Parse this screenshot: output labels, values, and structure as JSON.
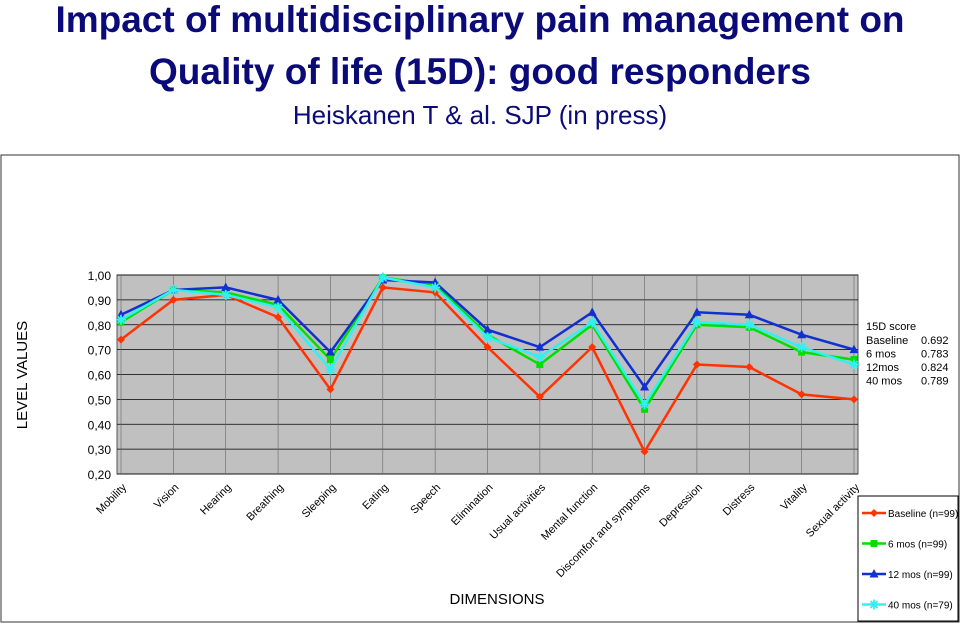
{
  "header": {
    "title_line1": "Impact of multidisciplinary pain management on",
    "title_line2": "Quality of life (15D): good responders",
    "subtitle": "Heiskanen T & al. SJP (in press)"
  },
  "chart_data": {
    "type": "line",
    "xlabel": "DIMENSIONS",
    "ylabel": "LEVEL VALUES",
    "ylim": [
      0.2,
      1.0
    ],
    "yticks": [
      "0,20",
      "0,30",
      "0,40",
      "0,50",
      "0,60",
      "0,70",
      "0,80",
      "0,90",
      "1,00"
    ],
    "categories": [
      "Mobility",
      "Vision",
      "Hearing",
      "Breathing",
      "Sleeping",
      "Eating",
      "Speech",
      "Elimination",
      "Usual activities",
      "Mental function",
      "Discomfort and symptoms",
      "Depression",
      "Distress",
      "Vitality",
      "Sexual activity"
    ],
    "series": [
      {
        "name": "Baseline (n=99)",
        "color": "#ff3300",
        "marker": "diamond",
        "values": [
          0.74,
          0.9,
          0.92,
          0.83,
          0.54,
          0.95,
          0.93,
          0.71,
          0.51,
          0.71,
          0.29,
          0.64,
          0.63,
          0.52,
          0.5
        ]
      },
      {
        "name": "6 mos (n=99)",
        "color": "#00e000",
        "marker": "square",
        "values": [
          0.81,
          0.94,
          0.93,
          0.88,
          0.66,
          0.99,
          0.96,
          0.76,
          0.64,
          0.8,
          0.46,
          0.8,
          0.79,
          0.69,
          0.66
        ]
      },
      {
        "name": "12 mos (n=99)",
        "color": "#1030d0",
        "marker": "triangle",
        "values": [
          0.84,
          0.94,
          0.95,
          0.9,
          0.69,
          0.98,
          0.97,
          0.78,
          0.71,
          0.85,
          0.55,
          0.85,
          0.84,
          0.76,
          0.7
        ]
      },
      {
        "name": "40 mos (n=79)",
        "color": "#30f0f0",
        "marker": "star",
        "values": [
          0.82,
          0.94,
          0.92,
          0.87,
          0.62,
          0.99,
          0.95,
          0.75,
          0.67,
          0.81,
          0.48,
          0.81,
          0.8,
          0.71,
          0.64
        ]
      }
    ],
    "score_box": {
      "heading": "15D score",
      "rows": [
        {
          "label": "Baseline",
          "value": "0.692"
        },
        {
          "label": "6 mos",
          "value": "0.783"
        },
        {
          "label": "12mos",
          "value": "0.824"
        },
        {
          "label": "40 mos",
          "value": "0.789"
        }
      ]
    },
    "legend_position": "bottom-right",
    "grid": true
  }
}
